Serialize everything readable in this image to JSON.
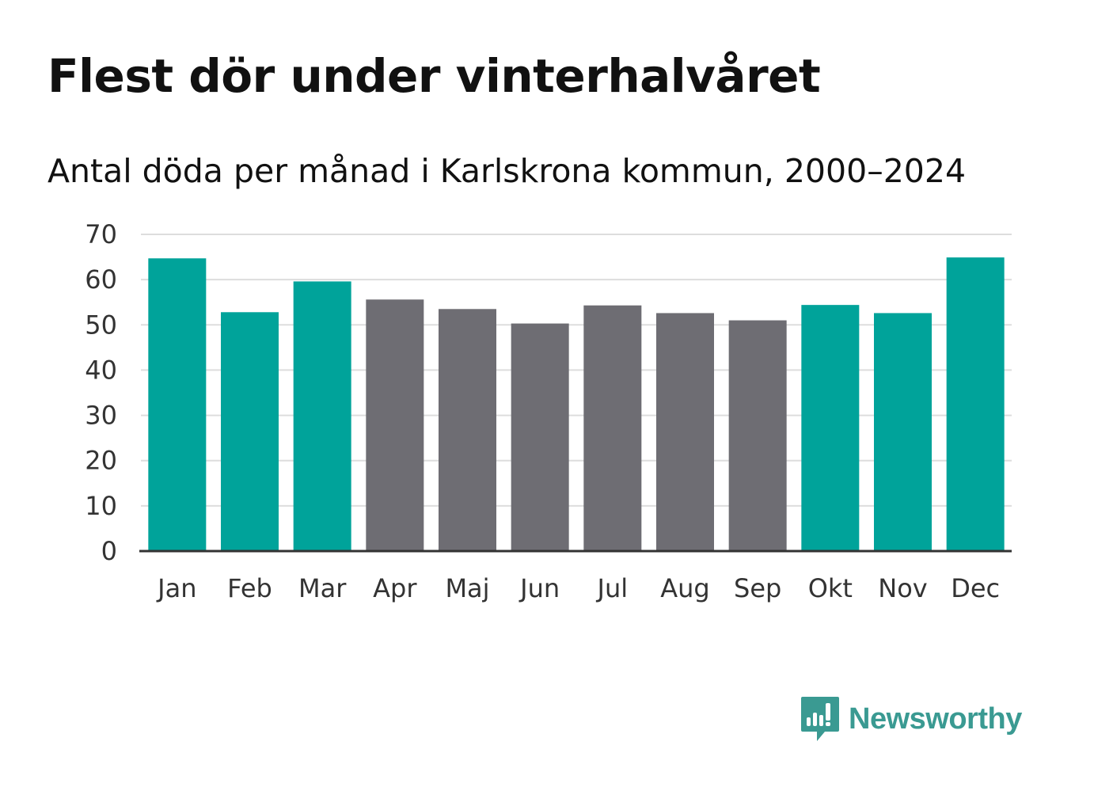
{
  "chart_data": {
    "type": "bar",
    "title": "Flest dör under vinterhalvåret",
    "subtitle": "Antal döda per månad i Karlskrona kommun, 2000–2024",
    "categories": [
      "Jan",
      "Feb",
      "Mar",
      "Apr",
      "Maj",
      "Jun",
      "Jul",
      "Aug",
      "Sep",
      "Okt",
      "Nov",
      "Dec"
    ],
    "values": [
      64.7,
      52.8,
      59.6,
      55.6,
      53.5,
      50.3,
      54.3,
      52.6,
      51.0,
      54.4,
      52.6,
      64.9
    ],
    "highlight": [
      true,
      true,
      true,
      false,
      false,
      false,
      false,
      false,
      false,
      true,
      true,
      true
    ],
    "ylim": [
      0,
      70
    ],
    "yticks": [
      0,
      10,
      20,
      30,
      40,
      50,
      60,
      70
    ],
    "xlabel": "",
    "ylabel": "",
    "grid": true,
    "colors": {
      "highlight": "#00a39a",
      "base": "#6e6d73",
      "grid": "#dddddd",
      "axis": "#333333"
    }
  },
  "branding": {
    "name": "Newsworthy",
    "color": "#3a9a92"
  }
}
